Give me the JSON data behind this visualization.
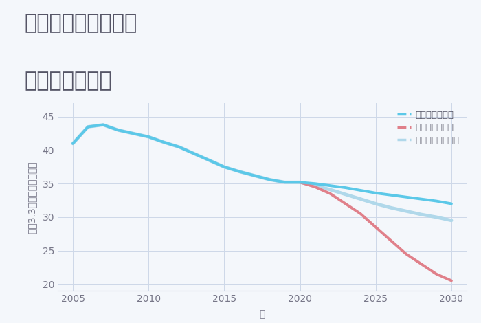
{
  "title_line1": "兵庫県姫路市手柄の",
  "title_line2": "土地の価格推移",
  "xlabel": "年",
  "ylabel": "坪（3.3㎡）単価（万円）",
  "background_color": "#f4f7fb",
  "plot_bg_color": "#f4f7fb",
  "ylim": [
    19,
    47
  ],
  "xlim": [
    2004.0,
    2031.0
  ],
  "yticks": [
    20,
    25,
    30,
    35,
    40,
    45
  ],
  "xticks": [
    2005,
    2010,
    2015,
    2020,
    2025,
    2030
  ],
  "series": {
    "good": {
      "label": "グッドシナリオ",
      "color": "#5bc8e8",
      "linewidth": 2.8,
      "x": [
        2005,
        2006,
        2007,
        2008,
        2009,
        2010,
        2011,
        2012,
        2013,
        2014,
        2015,
        2016,
        2017,
        2018,
        2019,
        2020,
        2021,
        2022,
        2023,
        2024,
        2025,
        2026,
        2027,
        2028,
        2029,
        2030
      ],
      "y": [
        41.0,
        43.5,
        43.8,
        43.0,
        42.5,
        42.0,
        41.2,
        40.5,
        39.5,
        38.5,
        37.5,
        36.8,
        36.2,
        35.6,
        35.2,
        35.2,
        35.0,
        34.7,
        34.4,
        34.0,
        33.6,
        33.3,
        33.0,
        32.7,
        32.4,
        32.0
      ]
    },
    "bad": {
      "label": "バッドシナリオ",
      "color": "#e0808a",
      "linewidth": 2.8,
      "x": [
        2020,
        2021,
        2022,
        2023,
        2024,
        2025,
        2026,
        2027,
        2028,
        2029,
        2030
      ],
      "y": [
        35.2,
        34.5,
        33.5,
        32.0,
        30.5,
        28.5,
        26.5,
        24.5,
        23.0,
        21.5,
        20.5
      ]
    },
    "normal": {
      "label": "ノーマルシナリオ",
      "color": "#b0d8ea",
      "linewidth": 3.5,
      "x": [
        2005,
        2006,
        2007,
        2008,
        2009,
        2010,
        2011,
        2012,
        2013,
        2014,
        2015,
        2016,
        2017,
        2018,
        2019,
        2020,
        2021,
        2022,
        2023,
        2024,
        2025,
        2026,
        2027,
        2028,
        2029,
        2030
      ],
      "y": [
        41.0,
        43.5,
        43.8,
        43.0,
        42.5,
        42.0,
        41.2,
        40.5,
        39.5,
        38.5,
        37.5,
        36.8,
        36.2,
        35.6,
        35.2,
        35.2,
        34.7,
        34.1,
        33.4,
        32.7,
        32.0,
        31.4,
        30.9,
        30.4,
        30.0,
        29.5
      ]
    }
  },
  "title_color": "#555566",
  "title_fontsize": 22,
  "label_fontsize": 10,
  "tick_fontsize": 10,
  "legend_fontsize": 9.5
}
